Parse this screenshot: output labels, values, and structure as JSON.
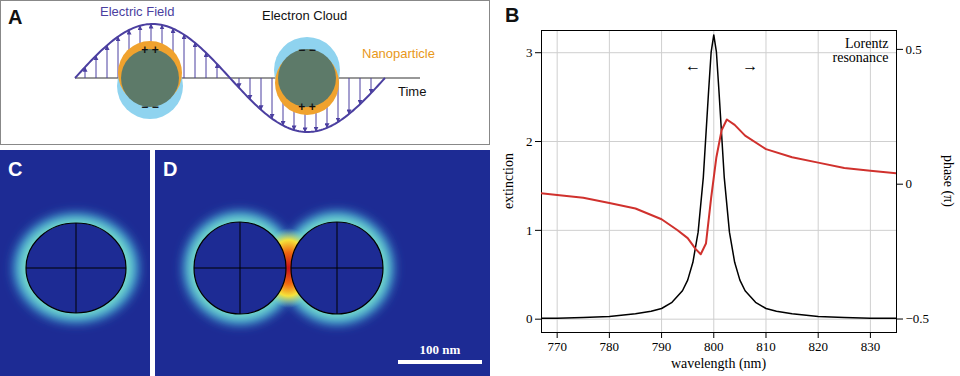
{
  "panel_a": {
    "letter": "A",
    "electric_field": "Electric Field",
    "electron_cloud": "Electron Cloud",
    "nanoparticle": "Nanoparticle",
    "time": "Time",
    "positive": "+ +",
    "negative": "− −"
  },
  "panel_c": {
    "letter": "C"
  },
  "panel_d": {
    "letter": "D",
    "scale_bar": "100 nm"
  },
  "chart_data": {
    "letter": "B",
    "type": "line",
    "title": "Lorentz resonance",
    "x_label": "wavelength (nm)",
    "y_label": "extinction",
    "y2_label": "phase (π)",
    "xlim": [
      767,
      835
    ],
    "xticks": [
      770,
      780,
      790,
      800,
      810,
      820,
      830
    ],
    "ylim": [
      -0.15,
      3.25
    ],
    "yticks": [
      0,
      1,
      2,
      3
    ],
    "y2lim": [
      -0.55,
      0.57
    ],
    "y2ticks": [
      {
        "value": -0.5,
        "label": "−0.5"
      },
      0,
      0.5
    ],
    "grid": true,
    "series": [
      {
        "color": "#000000",
        "x": [
          765,
          770,
          775,
          780,
          785,
          788,
          790,
          792,
          794,
          795,
          796,
          797,
          798,
          799,
          799.5,
          800,
          800.5,
          801,
          802,
          803,
          804,
          805,
          806,
          808,
          810,
          812,
          815,
          820,
          825,
          830,
          835
        ],
        "values": [
          0.01,
          0.01,
          0.02,
          0.03,
          0.06,
          0.09,
          0.12,
          0.19,
          0.32,
          0.44,
          0.64,
          0.98,
          1.6,
          2.56,
          3.01,
          3.2,
          3.01,
          2.56,
          1.6,
          0.98,
          0.64,
          0.44,
          0.32,
          0.19,
          0.12,
          0.09,
          0.06,
          0.03,
          0.02,
          0.01,
          0.01
        ]
      },
      {
        "color": "#d0312d",
        "axis": "y2",
        "x": [
          765,
          770,
          775,
          780,
          785,
          790,
          793,
          795,
          796.5,
          797.5,
          798.5,
          799.5,
          800.5,
          801.5,
          802.5,
          804,
          806,
          810,
          815,
          820,
          825,
          830,
          835
        ],
        "values": [
          -0.03,
          -0.04,
          -0.05,
          -0.07,
          -0.09,
          -0.13,
          -0.17,
          -0.2,
          -0.24,
          -0.26,
          -0.22,
          -0.05,
          0.1,
          0.2,
          0.24,
          0.22,
          0.18,
          0.13,
          0.1,
          0.08,
          0.06,
          0.05,
          0.04
        ]
      }
    ],
    "annotations": [
      {
        "text": "←",
        "x": 796,
        "y": 2.85
      },
      {
        "text": "→",
        "x": 807,
        "y": 2.85
      }
    ]
  }
}
